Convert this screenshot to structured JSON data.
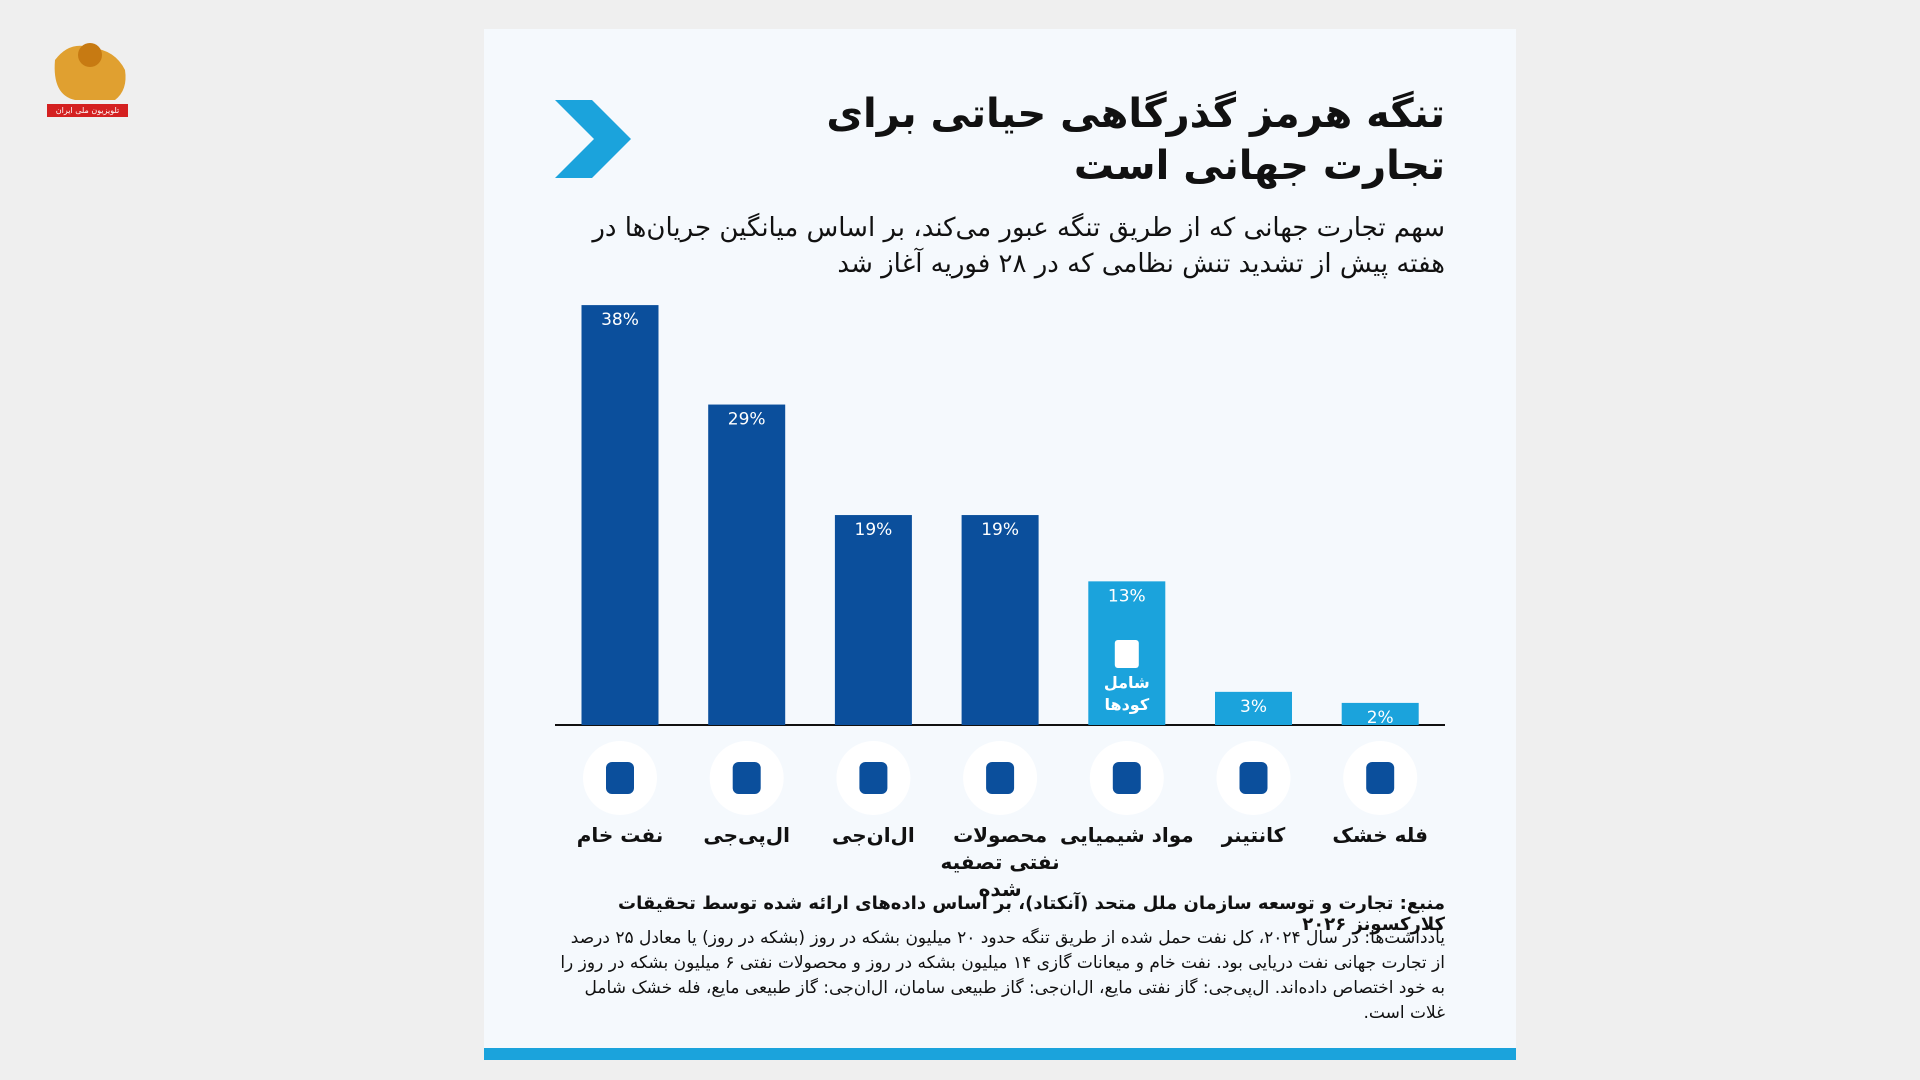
{
  "logo_text": "تلویزیون ملی ایران",
  "chart_data": {
    "type": "bar",
    "title": "تنگه هرمز گذرگاهی حیاتی برای تجارت جهانی است",
    "subtitle": "سهم تجارت جهانی که از طریق تنگه عبور می‌کند، بر اساس میانگین جریان‌ها در هفته پیش از تشدید تنش نظامی که در ۲۸ فوریه آغاز شد",
    "categories": [
      "نفت خام",
      "ال‌پی‌جی",
      "ال‌ان‌جی",
      "محصولات نفتی تصفیه شده",
      "مواد شیمیایی",
      "کانتینر",
      "فله خشک"
    ],
    "values": [
      38,
      29,
      19,
      19,
      13,
      3,
      2
    ],
    "value_labels": [
      "38%",
      "29%",
      "19%",
      "19%",
      "13%",
      "3%",
      "2%"
    ],
    "colors": [
      "#0b4f9c",
      "#0b4f9c",
      "#0b4f9c",
      "#0b4f9c",
      "#1ba3dc",
      "#1ba3dc",
      "#1ba3dc"
    ],
    "annotation": "شامل کودها",
    "source": "منبع: تجارت و توسعه سازمان ملل متحد (آنکتاد)، بر اساس داده‌های ارائه شده توسط تحقیقات کلارکسونز ۲۰۲۶",
    "notes": "یادداشت‌ها: در سال ۲۰۲۴، کل نفت حمل شده از طریق تنگه حدود ۲۰ میلیون بشکه در روز (بشکه در روز) یا معادل ۲۵ درصد از تجارت جهانی نفت دریایی بود. نفت خام و میعانات گازی ۱۴ میلیون بشکه در روز و محصولات نفتی ۶ میلیون بشکه در روز را به خود اختصاص داده‌اند. ال‌پی‌جی: گاز نفتی مایع، ال‌ان‌جی: گاز طبیعی سامان، ال‌ان‌جی: گاز طبیعی مایع، فله خشک شامل غلات است."
  }
}
